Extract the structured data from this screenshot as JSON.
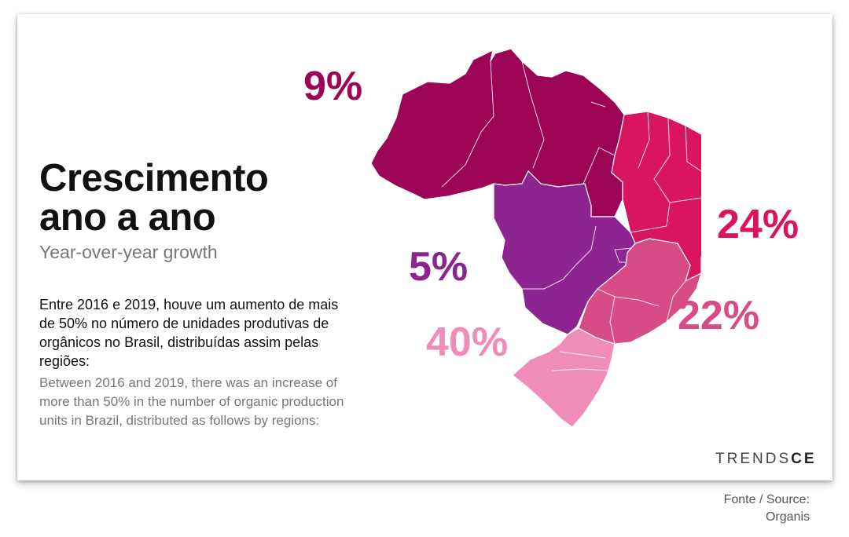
{
  "title_line1": "Crescimento",
  "title_line2": "ano a ano",
  "subtitle": "Year-over-year growth",
  "description_pt": "Entre 2016 e 2019, houve um aumento de mais de 50% no número de unidades produtivas de orgânicos no Brasil, distribuídas assim pelas regiões:",
  "description_en": "Between 2016 and 2019, there was an increase of more than 50% in the number of organic production units in Brazil, distributed as follows by regions:",
  "brand": {
    "part1": "TRENDS",
    "part2": "CE"
  },
  "source_line1": "Fonte / Source:",
  "source_line2": "Organis",
  "regions": [
    {
      "id": "north",
      "label": "9%",
      "value": 9,
      "color": "#9c0556"
    },
    {
      "id": "center-west",
      "label": "5%",
      "value": 5,
      "color": "#8e2490"
    },
    {
      "id": "northeast",
      "label": "24%",
      "value": 24,
      "color": "#da1560"
    },
    {
      "id": "southeast",
      "label": "22%",
      "value": 22,
      "color": "#d74c86"
    },
    {
      "id": "south",
      "label": "40%",
      "value": 40,
      "color": "#ef8db8"
    }
  ]
}
